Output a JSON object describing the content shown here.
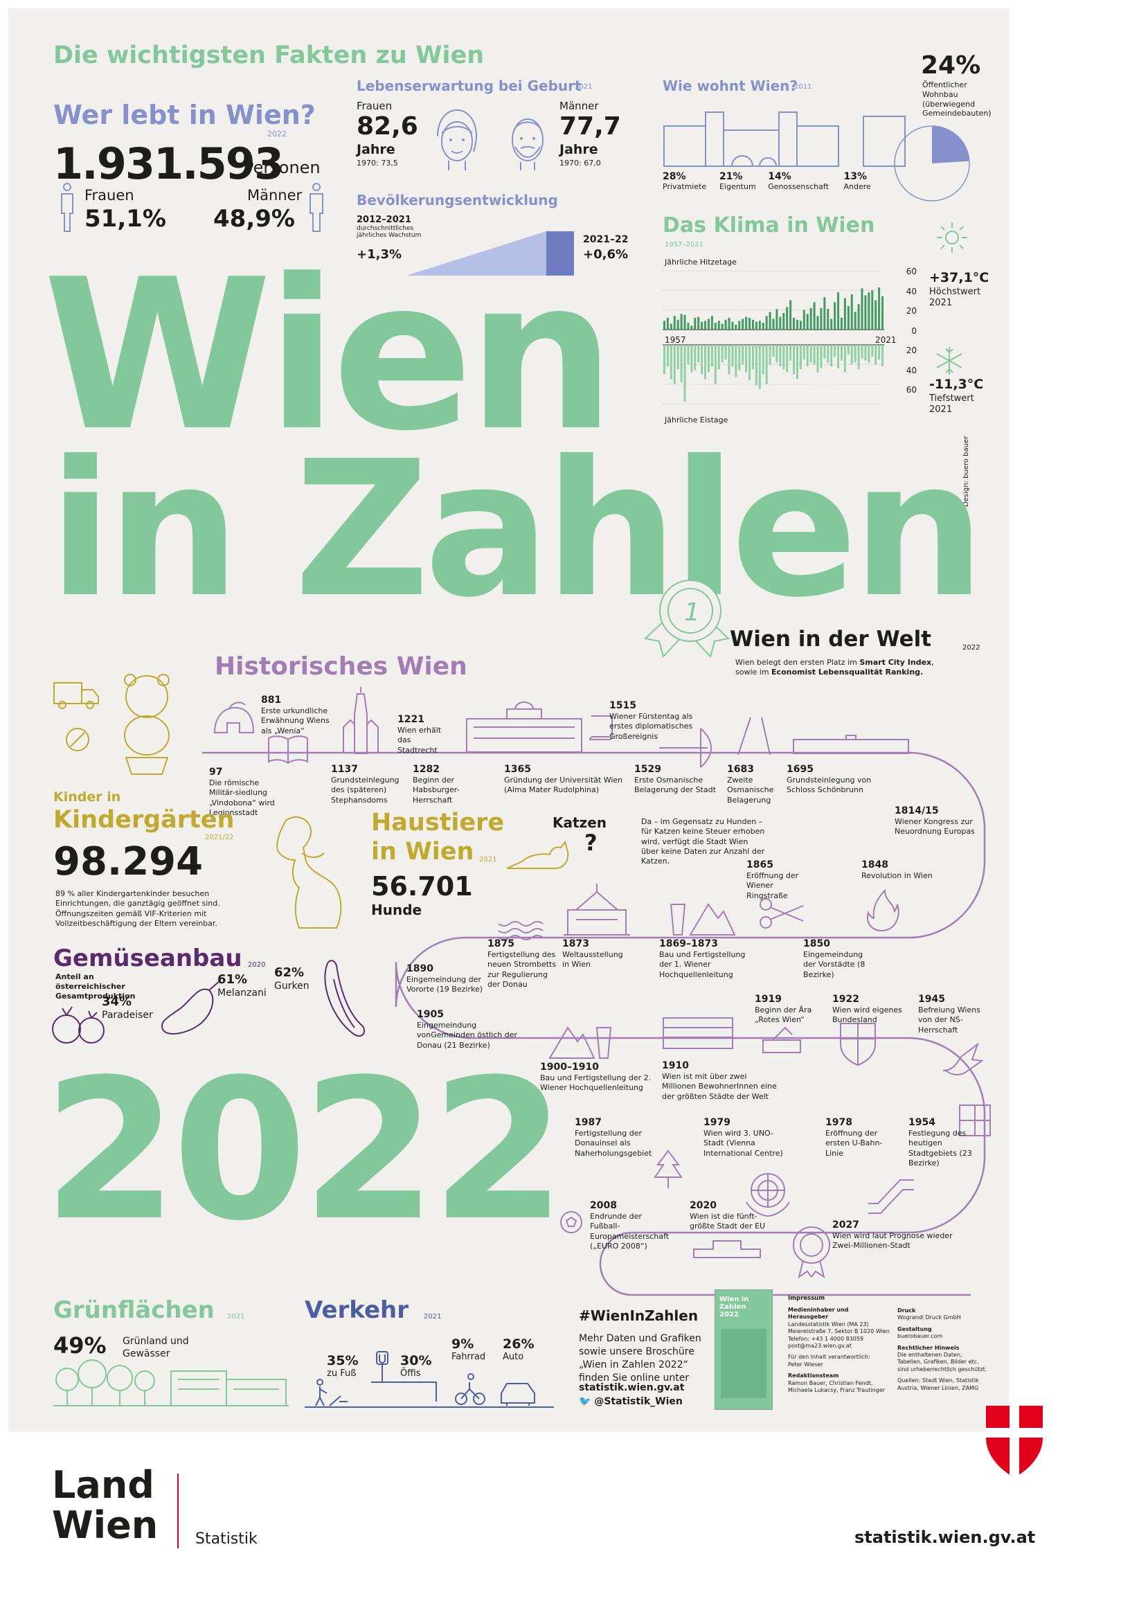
{
  "header": {
    "title": "Die wichtigsten Fakten zu Wien"
  },
  "population": {
    "title": "Wer lebt in Wien?",
    "year": "2022",
    "total": "1.931.593",
    "unit": "Personen",
    "female_label": "Frauen",
    "female_pct": "51,1%",
    "male_label": "Männer",
    "male_pct": "48,9%"
  },
  "life_expectancy": {
    "title": "Lebenserwartung bei Geburt",
    "year": "2021",
    "women_label": "Frauen",
    "women_value": "82,6",
    "women_unit": "Jahre",
    "women_1970": "1970: 73,5",
    "men_label": "Männer",
    "men_value": "77,7",
    "men_unit": "Jahre",
    "men_1970": "1970: 67,0"
  },
  "growth": {
    "title": "Bevölkerungsentwicklung",
    "period1": "2012–2021",
    "period1_desc": "durchschnittliches jährliches Wachstum",
    "period1_value": "+1,3%",
    "period2": "2021–22",
    "period2_value": "+0,6%"
  },
  "housing": {
    "title": "Wie wohnt Wien?",
    "year": "2011",
    "items": [
      {
        "pct": "28%",
        "label": "Privatmiete"
      },
      {
        "pct": "21%",
        "label": "Eigentum"
      },
      {
        "pct": "14%",
        "label": "Genossenschaft"
      },
      {
        "pct": "13%",
        "label": "Andere"
      }
    ],
    "public_pct": "24%",
    "public_label": "Öffentlicher Wohnbau (überwiegend Gemeindebauten)",
    "public_share": 0.24
  },
  "climate": {
    "title": "Das Klima in Wien",
    "period": "1957–2021",
    "hot_label": "Jährliche Hitzetage",
    "ice_label": "Jährliche Eistage",
    "start": "1957",
    "end": "2021",
    "ticks": [
      "60",
      "40",
      "20",
      "0",
      "20",
      "40",
      "60"
    ],
    "max_temp": "+37,1°C",
    "max_label": "Höchstwert",
    "max_year": "2021",
    "min_temp": "-11,3°C",
    "min_label": "Tiefstwert",
    "min_year": "2021"
  },
  "chart_data": {
    "type": "bar",
    "title": "Das Klima in Wien",
    "x_start": 1957,
    "x_end": 2021,
    "ylim": [
      -60,
      60
    ],
    "series": [
      {
        "name": "Jährliche Hitzetage",
        "values": [
          9,
          12,
          6,
          14,
          10,
          16,
          15,
          7,
          4,
          12,
          13,
          8,
          9,
          11,
          14,
          7,
          9,
          6,
          10,
          12,
          8,
          5,
          9,
          11,
          13,
          12,
          10,
          8,
          9,
          7,
          14,
          18,
          11,
          21,
          13,
          17,
          23,
          30,
          12,
          10,
          9,
          20,
          16,
          22,
          28,
          14,
          22,
          33,
          21,
          11,
          28,
          38,
          12,
          32,
          24,
          36,
          18,
          26,
          42,
          35,
          38,
          40,
          30,
          43,
          34
        ]
      },
      {
        "name": "Jährliche Eistage",
        "values": [
          30,
          22,
          35,
          40,
          25,
          38,
          58,
          20,
          28,
          26,
          18,
          30,
          35,
          28,
          22,
          40,
          25,
          18,
          15,
          30,
          22,
          33,
          26,
          20,
          28,
          36,
          25,
          41,
          45,
          30,
          40,
          20,
          12,
          18,
          22,
          25,
          28,
          16,
          30,
          35,
          25,
          15,
          22,
          18,
          20,
          28,
          24,
          14,
          18,
          22,
          12,
          24,
          16,
          28,
          10,
          20,
          18,
          25,
          14,
          16,
          18,
          12,
          20,
          15,
          22
        ]
      }
    ]
  },
  "title_big": {
    "line1": "Wien",
    "line2": "in Zahlen",
    "line3": "2022"
  },
  "credit": "Design: buero bauer",
  "world": {
    "title": "Wien in der Welt",
    "year": "2022",
    "text_pre": "Wien belegt den ersten Platz im ",
    "text_b1": "Smart City Index",
    "text_mid": ", sowie im ",
    "text_b2": "Economist Lebensqualität Ranking."
  },
  "history": {
    "title": "Historisches Wien",
    "events": [
      {
        "year": "881",
        "text": "Erste urkundliche Erwähnung Wiens als „Wenia“"
      },
      {
        "year": "97",
        "text": "Die römische Militär-siedlung „Vindobona“ wird Legionsstadt"
      },
      {
        "year": "1137",
        "text": "Grundsteinlegung des (späteren) Stephansdoms"
      },
      {
        "year": "1221",
        "text": "Wien erhält das Stadtrecht"
      },
      {
        "year": "1282",
        "text": "Beginn der Habsburger-Herrschaft"
      },
      {
        "year": "1365",
        "text": "Gründung der Universität Wien (Alma Mater Rudolphina)"
      },
      {
        "year": "1515",
        "text": "Wiener Fürstentag als erstes diplomatisches Großereignis"
      },
      {
        "year": "1529",
        "text": "Erste Osmanische Belagerung der Stadt"
      },
      {
        "year": "1683",
        "text": "Zweite Osmanische Belagerung"
      },
      {
        "year": "1695",
        "text": "Grundsteinlegung von Schloss Schönbrunn"
      },
      {
        "year": "1814/15",
        "text": "Wiener Kongress zur Neuordnung Europas"
      },
      {
        "year": "1865",
        "text": "Eröffnung der Wiener Ringstraße"
      },
      {
        "year": "1848",
        "text": "Revolution in Wien"
      },
      {
        "year": "1875",
        "text": "Fertigstellung des neuen Strombetts zur Regulierung der Donau"
      },
      {
        "year": "1873",
        "text": "Weltausstellung in Wien"
      },
      {
        "year": "1869–1873",
        "text": "Bau und Fertigstellung der 1. Wiener Hochquellenleitung"
      },
      {
        "year": "1850",
        "text": "Eingemeindung der Vorstädte (8 Bezirke)"
      },
      {
        "year": "1890",
        "text": "Eingemeindung der Vororte (19 Bezirke)"
      },
      {
        "year": "1905",
        "text": "Eingemeindung vonGemeinden östlich der Donau (21 Bezirke)"
      },
      {
        "year": "1919",
        "text": "Beginn der Ära „Rotes Wien“"
      },
      {
        "year": "1922",
        "text": "Wien wird eigenes Bundesland"
      },
      {
        "year": "1945",
        "text": "Befreiung Wiens von der NS-Herrschaft"
      },
      {
        "year": "1900–1910",
        "text": "Bau und Fertigstellung der 2. Wiener Hochquellenleitung"
      },
      {
        "year": "1910",
        "text": "Wien ist mit über zwei Millionen BewohnerInnen eine der größten Städte der Welt"
      },
      {
        "year": "1987",
        "text": "Fertigstellung der Donauinsel als Naherholungsgebiet"
      },
      {
        "year": "1979",
        "text": "Wien wird 3. UNO-Stadt (Vienna International Centre)"
      },
      {
        "year": "1978",
        "text": "Eröffnung der ersten U-Bahn-Linie"
      },
      {
        "year": "1954",
        "text": "Festlegung des heutigen Stadtgebiets (23 Bezirke)"
      },
      {
        "year": "2008",
        "text": "Endrunde der Fußball-Europameisterschaft („EURO 2008“)"
      },
      {
        "year": "2020",
        "text": "Wien ist die fünft-größte Stadt der EU"
      },
      {
        "year": "2027",
        "text": "Wien wird laut Prognose wieder Zwei-Millionen-Stadt"
      }
    ]
  },
  "kindergarten": {
    "title1": "Kinder in",
    "title2": "Kindergärten",
    "year": "2021/22",
    "value": "98.294",
    "text": "89 % aller Kindergartenkinder besuchen Einrichtungen, die ganztägig geöffnet sind. Öffnungszeiten gemäß VIF-Kriterien mit Vollzeitbeschäftigung der Eltern vereinbar."
  },
  "pets": {
    "title1": "Haustiere",
    "title2": "in Wien",
    "year": "2021",
    "value": "56.701",
    "unit": "Hunde",
    "cats_title": "Katzen",
    "cats_text": "Da – im Gegensatz zu Hunden – für Katzen keine Steuer erhoben wird, verfügt die Stadt Wien über keine Daten zur Anzahl der Katzen."
  },
  "vegetables": {
    "title": "Gemüseanbau",
    "year": "2020",
    "subtitle": "Anteil an österreichischer Gesamtproduktion",
    "items": [
      {
        "pct": "34%",
        "label": "Paradeiser"
      },
      {
        "pct": "61%",
        "label": "Melanzani"
      },
      {
        "pct": "62%",
        "label": "Gurken"
      }
    ]
  },
  "green": {
    "title": "Grünflächen",
    "year": "2021",
    "pct": "49%",
    "label": "Grünland und Gewässer"
  },
  "traffic": {
    "title": "Verkehr",
    "year": "2021",
    "items": [
      {
        "pct": "35%",
        "label": "zu Fuß"
      },
      {
        "pct": "30%",
        "label": "Öffis"
      },
      {
        "pct": "9%",
        "label": "Fahrrad"
      },
      {
        "pct": "26%",
        "label": "Auto"
      }
    ]
  },
  "hashtag": {
    "title": "#WienInZahlen",
    "text": "Mehr Daten und Grafiken sowie unsere Broschüre „Wien in Zahlen 2022“ finden Sie online unter",
    "url": "statistik.wien.gv.at",
    "twitter": "@Statistik_Wien",
    "brochure_title": "Wien in Zahlen 2022"
  },
  "impressum": {
    "title": "Impressum",
    "owner_h": "Medieninhaber und Herausgeber",
    "owner": "Landesstatistik Wien (MA 23) Meiereistraße 7, Sektor B 1020 Wien Telefon: +43 1 4000 83059 post@ma23.wien.gv.at",
    "resp_h": "Für den Inhalt verantwortlich:",
    "resp": "Peter Wieser",
    "team_h": "Redaktionsteam",
    "team": "Ramon Bauer, Christian Fendt, Michaela Lukacsy, Franz Trautinger",
    "print_h": "Druck",
    "print": "Wograndl Druck GmbH",
    "design_h": "Gestaltung",
    "design": "buerobauer.com",
    "legal_h": "Rechtlicher Hinweis",
    "legal": "Die enthaltenen Daten, Tabellen, Grafiken, Bilder etc. sind urheberrechtlich geschützt.",
    "sources": "Quellen: Stadt Wien, Statistik Austria, Wiener Linien, ZAMG"
  },
  "footer": {
    "logo1": "Land",
    "logo2": "Wien",
    "dept": "Statistik",
    "url": "statistik.wien.gv.at"
  },
  "colors": {
    "green": "#82c89a",
    "blue": "#8691cc",
    "purple": "#a27db5",
    "olive": "#c0a92d",
    "red": "#e2001a",
    "bg": "#f2f0ed"
  }
}
